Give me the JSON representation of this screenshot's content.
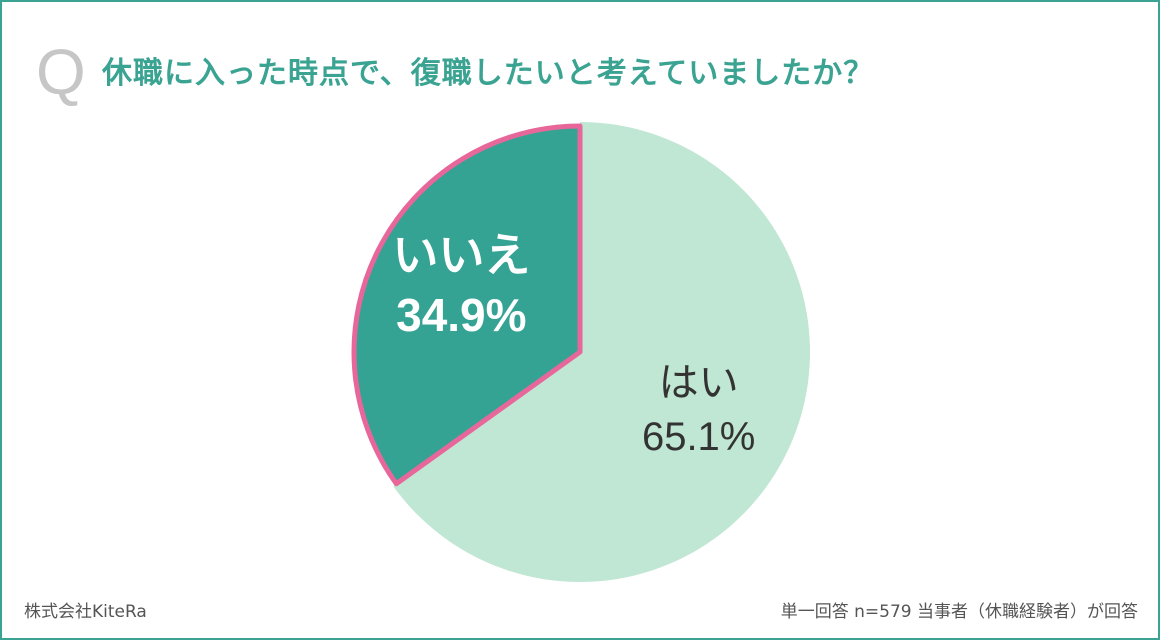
{
  "question": {
    "marker": "Q",
    "text": "休職に入った時点で、復職したいと考えていましたか？"
  },
  "chart_data": {
    "type": "pie",
    "slices": [
      {
        "label": "はい",
        "value": 65.1,
        "display": "65.1%",
        "color": "#c0e6d4"
      },
      {
        "label": "いいえ",
        "value": 34.9,
        "display": "34.9%",
        "color": "#34a393",
        "highlight": "#e8679a"
      }
    ],
    "start_angle_deg": 0,
    "direction": "clockwise"
  },
  "footer": {
    "company": "株式会社KiteRa",
    "note": "単一回答 n=579 当事者（休職経験者）が回答"
  },
  "colors": {
    "accent": "#3aa392",
    "highlight": "#e8679a",
    "label_dark": "#333333",
    "label_light": "#ffffff"
  }
}
